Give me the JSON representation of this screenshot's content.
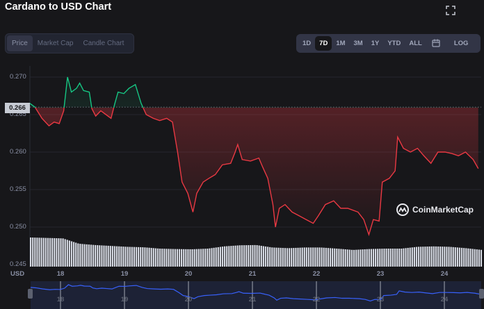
{
  "title": "Cardano to USD Chart",
  "tabs": [
    {
      "label": "Price",
      "active": true
    },
    {
      "label": "Market Cap"
    },
    {
      "label": "Candle Chart"
    }
  ],
  "ranges": [
    {
      "label": "1D"
    },
    {
      "label": "7D",
      "active": true
    },
    {
      "label": "1M"
    },
    {
      "label": "3M"
    },
    {
      "label": "1Y"
    },
    {
      "label": "YTD"
    },
    {
      "label": "ALL"
    },
    {
      "icon": "calendar-icon"
    },
    {
      "label": "LOG"
    }
  ],
  "current_price": "0.266",
  "currency": "USD",
  "watermark": "CoinMarketCap",
  "colors": {
    "up": "#16c784",
    "down": "#ea3943",
    "navigator": "#3861fb"
  },
  "chart_data": {
    "type": "line",
    "baseline": 0.266,
    "yticks": [
      "0.270",
      "0.265",
      "0.260",
      "0.255",
      "0.250",
      "0.245"
    ],
    "xticks": [
      "18",
      "19",
      "20",
      "21",
      "22",
      "23",
      "24"
    ],
    "ylim": [
      0.2445,
      0.2715
    ],
    "xlim": [
      17.52,
      24.55
    ],
    "x": [
      17.52,
      17.6,
      17.71,
      17.82,
      17.9,
      17.98,
      18.05,
      18.11,
      18.17,
      18.25,
      18.3,
      18.36,
      18.45,
      18.49,
      18.55,
      18.63,
      18.71,
      18.79,
      18.85,
      18.9,
      18.99,
      19.07,
      19.17,
      19.26,
      19.34,
      19.45,
      19.55,
      19.66,
      19.75,
      19.83,
      19.9,
      19.99,
      20.07,
      20.13,
      20.23,
      20.32,
      20.42,
      20.53,
      20.66,
      20.73,
      20.77,
      20.84,
      20.97,
      21.1,
      21.16,
      21.24,
      21.32,
      21.36,
      21.42,
      21.51,
      21.62,
      21.73,
      21.84,
      21.95,
      22.03,
      22.14,
      22.27,
      22.38,
      22.49,
      22.65,
      22.74,
      22.82,
      22.89,
      22.98,
      23.03,
      23.14,
      23.23,
      23.27,
      23.36,
      23.47,
      23.58,
      23.68,
      23.79,
      23.9,
      24.01,
      24.12,
      24.22,
      24.33,
      24.45,
      24.53
    ],
    "y": [
      0.2665,
      0.266,
      0.2645,
      0.2635,
      0.264,
      0.2638,
      0.2655,
      0.27,
      0.268,
      0.2685,
      0.2692,
      0.2682,
      0.268,
      0.2658,
      0.2648,
      0.2655,
      0.265,
      0.2645,
      0.2665,
      0.268,
      0.2678,
      0.2685,
      0.269,
      0.2665,
      0.265,
      0.2645,
      0.2642,
      0.2645,
      0.264,
      0.26,
      0.256,
      0.2545,
      0.252,
      0.2545,
      0.256,
      0.2565,
      0.257,
      0.2583,
      0.2585,
      0.26,
      0.261,
      0.259,
      0.2588,
      0.2592,
      0.258,
      0.2565,
      0.253,
      0.25,
      0.2525,
      0.253,
      0.252,
      0.2515,
      0.251,
      0.2505,
      0.2515,
      0.253,
      0.2535,
      0.2525,
      0.2525,
      0.252,
      0.251,
      0.249,
      0.251,
      0.2508,
      0.256,
      0.2565,
      0.2575,
      0.262,
      0.2605,
      0.26,
      0.2605,
      0.2595,
      0.2585,
      0.26,
      0.26,
      0.2598,
      0.2595,
      0.26,
      0.259,
      0.2578
    ],
    "volume_relative": [
      1.0,
      0.98,
      0.96,
      0.72,
      0.66,
      0.62,
      0.58,
      0.56,
      0.5,
      0.48,
      0.47,
      0.5,
      0.6,
      0.65,
      0.66,
      0.55,
      0.52,
      0.55,
      0.55,
      0.5,
      0.44,
      0.48,
      0.5,
      0.5,
      0.58,
      0.6,
      0.58,
      0.52,
      0.44
    ]
  }
}
